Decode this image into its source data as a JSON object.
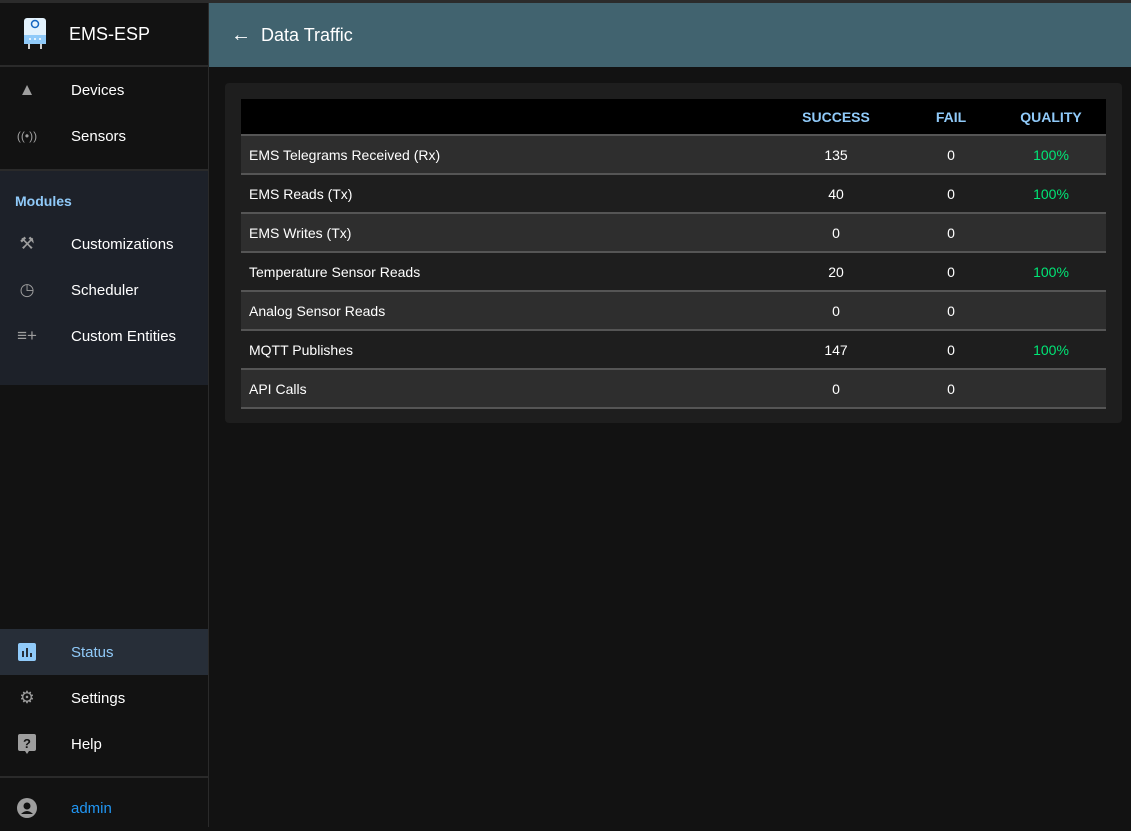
{
  "app": {
    "title": "EMS-ESP"
  },
  "header": {
    "title": "Data Traffic",
    "back_icon": "arrow-left-icon"
  },
  "sidebar": {
    "items": [
      {
        "label": "Devices",
        "icon": "shapes-icon"
      },
      {
        "label": "Sensors",
        "icon": "sensors-icon"
      }
    ],
    "modules_title": "Modules",
    "modules": [
      {
        "label": "Customizations",
        "icon": "tools-icon"
      },
      {
        "label": "Scheduler",
        "icon": "more-time-icon"
      },
      {
        "label": "Custom Entities",
        "icon": "playlist-add-icon"
      }
    ],
    "bottom": [
      {
        "label": "Status",
        "icon": "bar-chart-icon",
        "active": true
      },
      {
        "label": "Settings",
        "icon": "gear-icon"
      },
      {
        "label": "Help",
        "icon": "help-icon"
      }
    ],
    "user": {
      "label": "admin",
      "icon": "account-circle-icon"
    }
  },
  "table": {
    "headers": [
      "",
      "SUCCESS",
      "FAIL",
      "QUALITY"
    ],
    "rows": [
      {
        "name": "EMS Telegrams Received (Rx)",
        "success": "135",
        "fail": "0",
        "quality": "100%"
      },
      {
        "name": "EMS Reads (Tx)",
        "success": "40",
        "fail": "0",
        "quality": "100%"
      },
      {
        "name": "EMS Writes (Tx)",
        "success": "0",
        "fail": "0",
        "quality": ""
      },
      {
        "name": "Temperature Sensor Reads",
        "success": "20",
        "fail": "0",
        "quality": "100%"
      },
      {
        "name": "Analog Sensor Reads",
        "success": "0",
        "fail": "0",
        "quality": ""
      },
      {
        "name": "MQTT Publishes",
        "success": "147",
        "fail": "0",
        "quality": "100%"
      },
      {
        "name": "API Calls",
        "success": "0",
        "fail": "0",
        "quality": ""
      }
    ]
  },
  "colors": {
    "header": "#41636f",
    "accent": "#90caf9",
    "quality": "#00e676",
    "user": "#2196f3"
  }
}
